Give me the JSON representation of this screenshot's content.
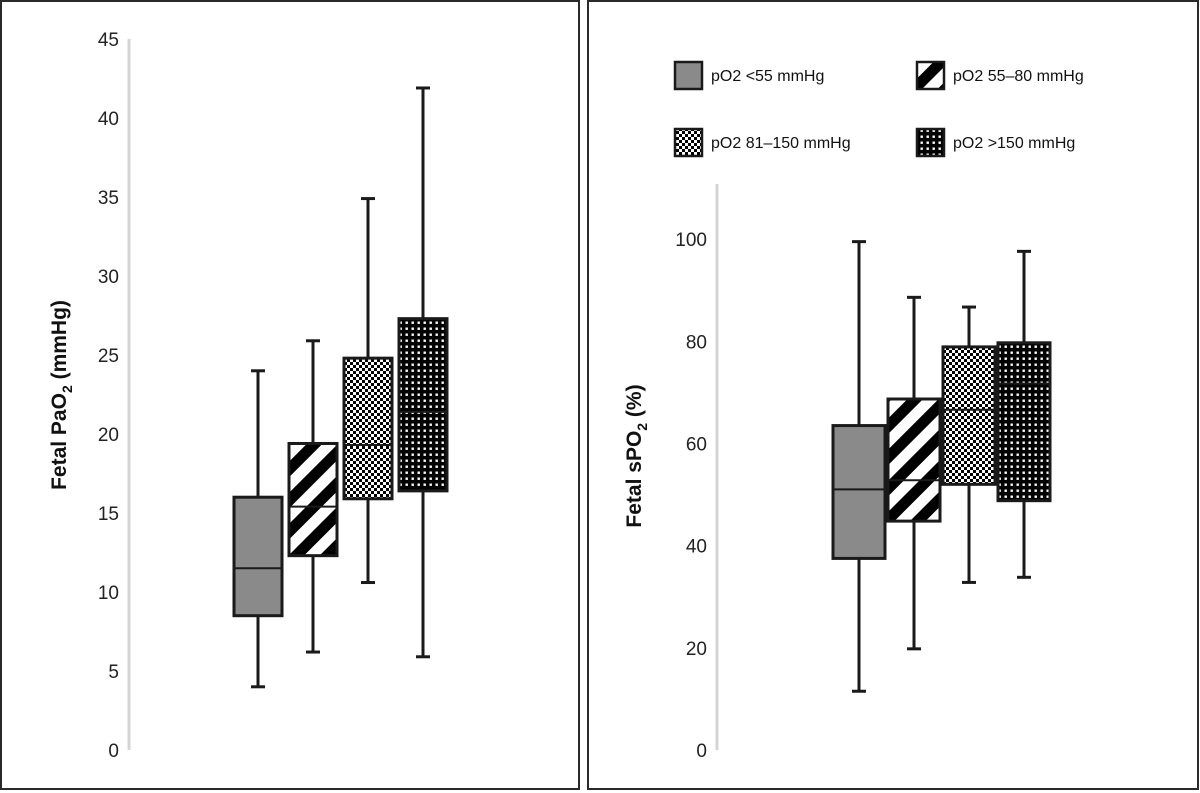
{
  "legend": [
    {
      "name": "pO2 <55 mmHg",
      "pattern": "solid-gray",
      "color": "#8a8a8a"
    },
    {
      "name": "pO2 55–80 mmHg",
      "pattern": "diagonal-stripes",
      "color": "#000000"
    },
    {
      "name": "pO2 81–150 mmHg",
      "pattern": "light-checker",
      "color": "#000000"
    },
    {
      "name": "pO2 >150 mmHg",
      "pattern": "dark-dots",
      "color": "#000000"
    }
  ],
  "chart_data": [
    {
      "type": "box",
      "ylabel": {
        "main": "Fetal PaO",
        "sub": "2",
        "tail": " (mmHg)"
      },
      "ylim": [
        0,
        45
      ],
      "yticks": [
        "0",
        "5",
        "10",
        "15",
        "20",
        "25",
        "30",
        "35",
        "40",
        "45"
      ],
      "ytick_values": [
        0,
        5,
        10,
        15,
        20,
        25,
        30,
        35,
        40,
        45
      ],
      "legend_position": "none",
      "series": [
        {
          "name": "pO2 <55 mmHg",
          "min": 4,
          "q1": 8.5,
          "median": 11.5,
          "q3": 16,
          "max": 24
        },
        {
          "name": "pO2 55–80 mmHg",
          "min": 6.2,
          "q1": 12.3,
          "median": 15.4,
          "q3": 19.4,
          "max": 25.9
        },
        {
          "name": "pO2 81–150 mmHg",
          "min": 10.6,
          "q1": 15.9,
          "median": 19.3,
          "q3": 24.8,
          "max": 34.9
        },
        {
          "name": "pO2 >150 mmHg",
          "min": 5.9,
          "q1": 16.4,
          "median": 21.4,
          "q3": 27.3,
          "max": 41.9
        }
      ]
    },
    {
      "type": "box",
      "ylabel": {
        "main": "Fetal sPO",
        "sub": "2",
        "tail": " (%)"
      },
      "ylim": [
        0,
        110
      ],
      "yticks": [
        "0",
        "20",
        "40",
        "60",
        "80",
        "100"
      ],
      "ytick_values": [
        0,
        20,
        40,
        60,
        80,
        100
      ],
      "legend_position": "top",
      "series": [
        {
          "name": "pO2 <55 mmHg",
          "min": 11.5,
          "q1": 37.5,
          "median": 51,
          "q3": 63.5,
          "max": 99.5
        },
        {
          "name": "pO2 55–80 mmHg",
          "min": 19.8,
          "q1": 44.8,
          "median": 52.8,
          "q3": 68.7,
          "max": 88.6
        },
        {
          "name": "pO2 81–150 mmHg",
          "min": 32.8,
          "q1": 52,
          "median": 66.6,
          "q3": 78.9,
          "max": 86.7
        },
        {
          "name": "pO2 >150 mmHg",
          "min": 33.8,
          "q1": 48.8,
          "median": 71.7,
          "q3": 79.7,
          "max": 97.6
        }
      ]
    }
  ]
}
